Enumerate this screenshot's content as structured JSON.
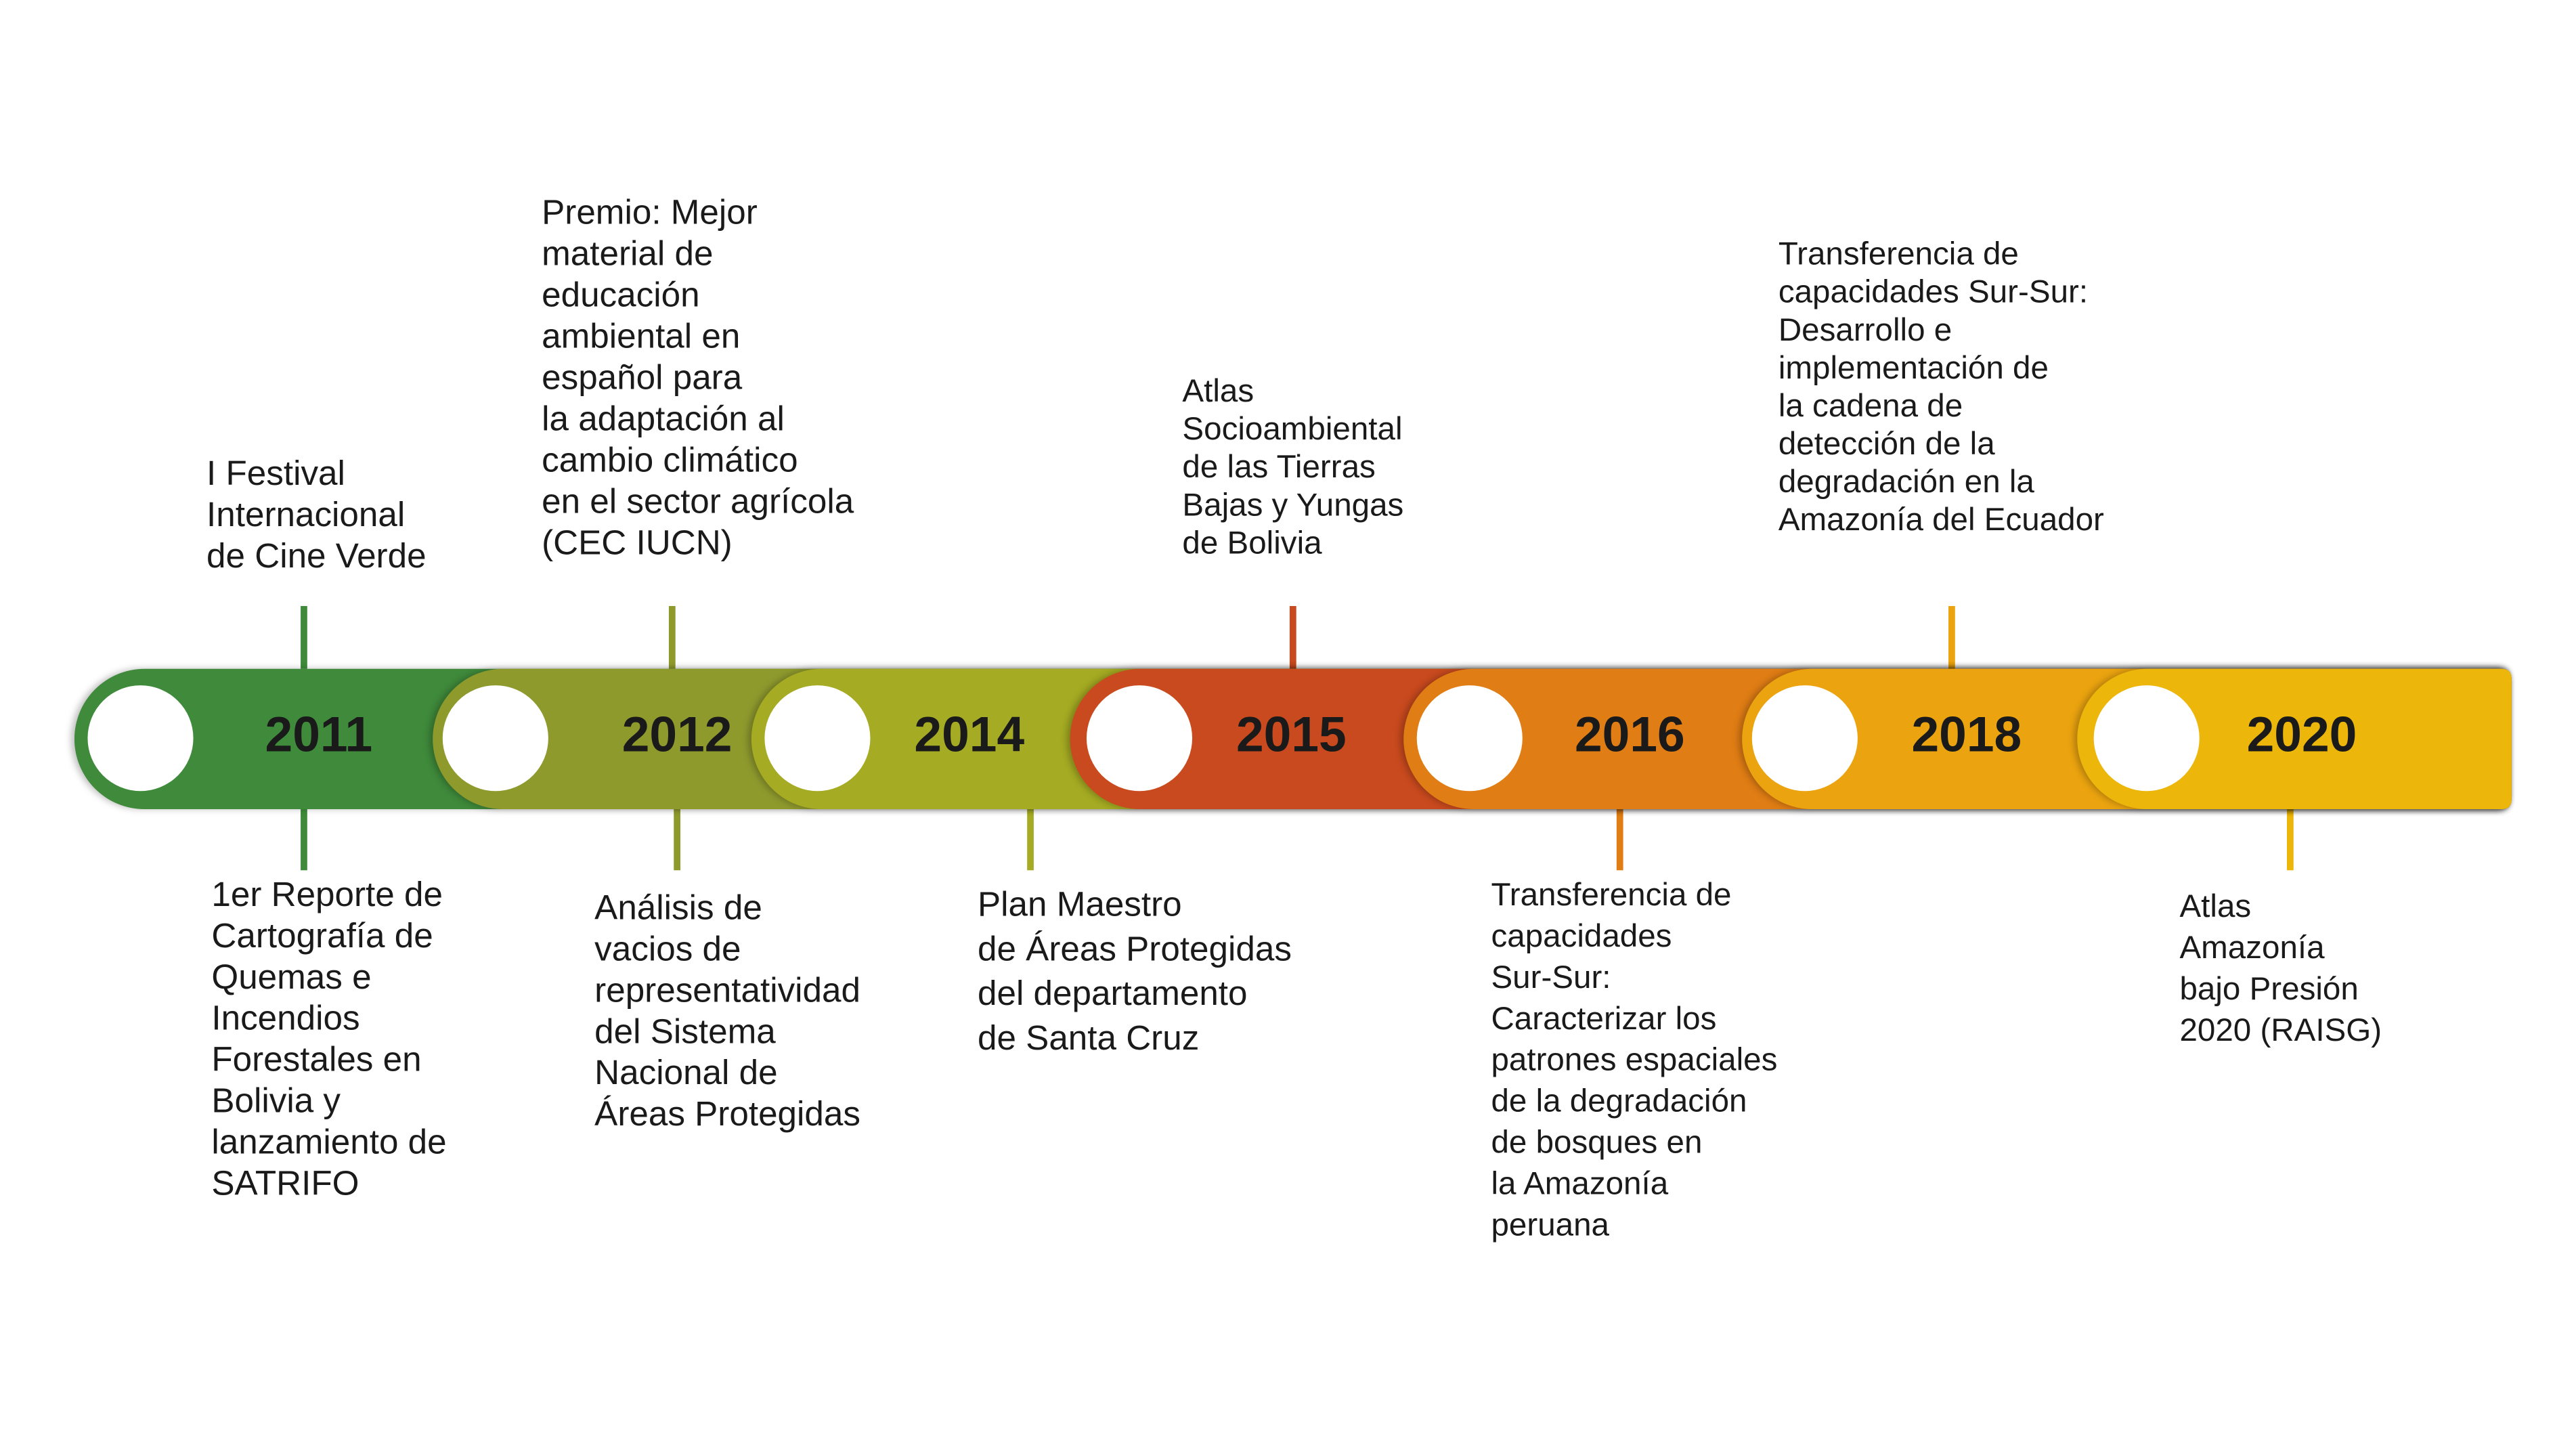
{
  "items": [
    {
      "year": "2011",
      "color": "#3f8a3b",
      "above": [
        "I Festival",
        "Internacional",
        "de Cine Verde"
      ],
      "below": [
        "1er Reporte de",
        "Cartografía de",
        "Quemas e",
        "Incendios",
        "Forestales en",
        "Bolivia y",
        "lanzamiento de",
        "SATRIFO"
      ]
    },
    {
      "year": "2012",
      "color": "#8f9a2d",
      "above": [
        "Premio: Mejor",
        "material de",
        "educación",
        "ambiental en",
        "español para",
        "la adaptación al",
        "cambio climático",
        "en el sector agrícola",
        "(CEC IUCN)"
      ],
      "below": [
        "Análisis de",
        "vacios de",
        "representatividad",
        "del Sistema",
        "Nacional de",
        "Áreas Protegidas"
      ]
    },
    {
      "year": "2014",
      "color": "#a5ab22",
      "below": [
        "Plan Maestro",
        "de Áreas Protegidas",
        "del departamento",
        "de Santa Cruz"
      ]
    },
    {
      "year": "2015",
      "color": "#c94a1e",
      "above": [
        "Atlas",
        "Socioambiental",
        "de las Tierras",
        "Bajas y Yungas",
        "de Bolivia"
      ]
    },
    {
      "year": "2016",
      "color": "#e07d14",
      "below": [
        "Transferencia de",
        "capacidades",
        "Sur-Sur:",
        "Caracterizar los",
        "patrones espaciales",
        "de la degradación",
        "de bosques en",
        "la Amazonía",
        "peruana"
      ]
    },
    {
      "year": "2018",
      "color": "#eba40f",
      "above": [
        "Transferencia de",
        "capacidades Sur-Sur:",
        "Desarrollo e",
        "implementación de",
        "la cadena de",
        "detección de la",
        "degradación en la",
        "Amazonía del Ecuador"
      ]
    },
    {
      "year": "2020",
      "color": "#edb60a",
      "below": [
        "Atlas",
        "Amazonía",
        "bajo Presión",
        "2020 (RAISG)"
      ]
    }
  ]
}
